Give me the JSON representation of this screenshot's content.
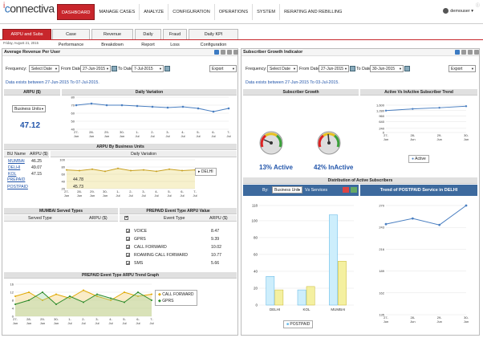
{
  "app": {
    "logo_main": "connectiva",
    "logo_accent": "c",
    "logo_mark": "i",
    "user": "demouser"
  },
  "nav": [
    "DASHBOARD",
    "MANAGE CASES",
    "ANALYZE",
    "CONFIGURATION",
    "OPERATIONS",
    "SYSTEM",
    "RERATING AND REBILLING"
  ],
  "tabs": [
    "ARPU and Subs Growth",
    "Case Performance",
    "Revenue Breakdown",
    "Daily Report",
    "Fraud Loss",
    "Daily KPI Configuration"
  ],
  "date_line": "Friday, August 21, 2015",
  "left": {
    "title": "Average Revenue Per User",
    "freq_label": "Frequency:",
    "freq_value": "Select Date",
    "from_label": "From Date:",
    "from_value": "27-Jun-2015",
    "to_label": "To Date:",
    "to_value": "7-Jul-2015",
    "export": "Export",
    "range_text": "Data exists between 27-Jun-2015 To 07-Jul-2015.",
    "arpu_head": "ARPU ($)",
    "daily_head": "Daily Variation",
    "bu_select": "Business Units",
    "arpu_value": "47.12",
    "by_bu_head": "ARPU By Business Units",
    "col_bu": "BU Name",
    "col_arpu": "ARPU ($)",
    "bu_rows": [
      {
        "name": "MUMBAI",
        "value": "46.25"
      },
      {
        "name": "DELHI",
        "value": "49.07"
      },
      {
        "name": "KOL",
        "value": "47.15"
      }
    ],
    "mumbai_head": "MUMBAI Served Types",
    "served_col": "Served Type",
    "served_arpu": "ARPU ($)",
    "served_rows": [
      {
        "name": "PREPAID",
        "value": "44.78"
      },
      {
        "name": "POSTPAID",
        "value": "45.73"
      }
    ],
    "event_head": "PREPAID Event Type ARPU Value",
    "event_col": "Event Type",
    "event_arpu": "ARPU ($)",
    "event_rows": [
      {
        "name": "VOICE",
        "value": "8.47"
      },
      {
        "name": "GPRS",
        "value": "9.39"
      },
      {
        "name": "CALL FORWARD",
        "value": "10.02"
      },
      {
        "name": "ROAMING CALL FORWARD",
        "value": "10.77"
      },
      {
        "name": "SMS",
        "value": "5.66"
      }
    ],
    "trend_head": "PREPAID Event Type ARPU Trend Graph",
    "legend_delhi": "DELHI",
    "legend_cf": "CALL FORWARD",
    "legend_gprs": "GPRS"
  },
  "right": {
    "title": "Subscriber Growth Indicator",
    "freq_label": "Frequency:",
    "freq_value": "Select Date",
    "from_label": "From Date:",
    "from_value": "27-Jun-2015",
    "to_label": "To Date:",
    "to_value": "30-Jun-2015",
    "export": "Export",
    "range_text": "Data exists between 27-Jun-2015 To 03-Jul-2015.",
    "growth_head": "Subscriber Growth",
    "trend_head": "Active Vs InActive Subscriber Trend",
    "active_pct": "13% Active",
    "inactive_pct": "42% InActive",
    "legend_active": "Active",
    "dist_head": "Distribution of Active Subscribers",
    "by_label": "By:",
    "by_value": "Business Unit",
    "vs_label": "Vs Services",
    "postpaid_head": "Trend of POSTPAID Service in DELHI",
    "legend_postpaid": "POSTPAID"
  },
  "colors": {
    "accent": "#c8262c",
    "link": "#2255aa",
    "line": "#4a7fc1"
  },
  "chart_data": [
    {
      "type": "line",
      "title": "Daily Variation",
      "categories": [
        "27-Jun",
        "28-Jun",
        "29-Jun",
        "30-Jun",
        "1-Jul",
        "2-Jul",
        "3-Jul",
        "4-Jul",
        "5-Jul",
        "6-Jul",
        "7-Jul"
      ],
      "values": [
        70,
        72,
        70,
        70,
        69,
        68,
        67,
        68,
        66,
        62,
        66
      ],
      "ylim": [
        40,
        80
      ],
      "yticks": [
        40,
        50,
        60,
        70,
        80
      ]
    },
    {
      "type": "line",
      "title": "Daily Variation",
      "categories": [
        "27-Jun",
        "28-Jun",
        "29-Jun",
        "30-Jun",
        "1-Jul",
        "2-Jul",
        "3-Jul",
        "4-Jul",
        "5-Jul",
        "6-Jul",
        "7-Jul"
      ],
      "series": [
        {
          "name": "DELHI",
          "values": [
            72,
            70,
            74,
            68,
            76,
            70,
            72,
            68,
            74,
            70,
            72
          ]
        }
      ],
      "ylim": [
        20,
        100
      ],
      "yticks": [
        20,
        40,
        60,
        80,
        100
      ]
    },
    {
      "type": "line",
      "title": "Active Vs InActive Subscriber Trend",
      "categories": [
        "27-Jun",
        "28-Jun",
        "29-Jun",
        "30-Jun"
      ],
      "series": [
        {
          "name": "Active",
          "values": [
            1280,
            1380,
            1450,
            1540
          ]
        }
      ],
      "ylim": [
        0,
        1600
      ],
      "yticks": [
        0,
        240,
        640,
        960,
        1280,
        1600
      ],
      "ytick_labels": [
        "0",
        "240",
        "640",
        "960",
        "1,280",
        "1,600"
      ]
    },
    {
      "type": "bar",
      "title": "Distribution of Active Subscribers",
      "categories": [
        "DELHI",
        "KOL",
        "MUMBAI"
      ],
      "series": [
        {
          "name": "POSTPAID",
          "values": [
            34,
            18,
            107
          ]
        },
        {
          "name": "PREPAID",
          "values": [
            18,
            22,
            52
          ]
        }
      ],
      "ylim": [
        0,
        118
      ],
      "yticks": [
        0,
        20,
        40,
        60,
        80,
        100,
        118
      ]
    },
    {
      "type": "line",
      "title": "Trend of POSTPAID Service in DELHI",
      "categories": [
        "27-Jun",
        "28-Jun",
        "29-Jun",
        "30-Jun"
      ],
      "values": [
        247,
        254,
        246,
        270
      ],
      "ylim": [
        135,
        270
      ],
      "yticks": [
        135,
        162,
        189,
        216,
        243,
        270
      ]
    },
    {
      "type": "line",
      "title": "PREPAID Event Type ARPU Trend Graph",
      "categories": [
        "27-Jun",
        "28-Jun",
        "29-Jun",
        "30-Jun",
        "1-Jul",
        "2-Jul",
        "3-Jul",
        "4-Jul",
        "5-Jul",
        "6-Jul",
        "7-Jul"
      ],
      "series": [
        {
          "name": "CALL FORWARD",
          "values": [
            10,
            12,
            8,
            11,
            9,
            13,
            10,
            8,
            12,
            10,
            11
          ]
        },
        {
          "name": "GPRS",
          "values": [
            6,
            8,
            12,
            6,
            10,
            7,
            11,
            9,
            7,
            12,
            8
          ]
        }
      ],
      "ylim": [
        0,
        16
      ],
      "yticks": [
        0,
        4,
        8,
        12,
        16
      ]
    }
  ]
}
